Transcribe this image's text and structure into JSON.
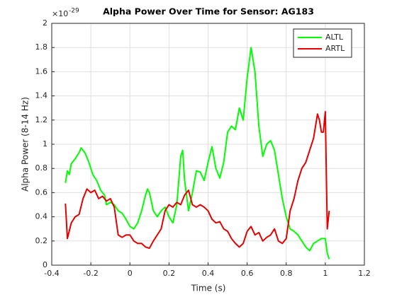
{
  "chart_data": {
    "type": "line",
    "title": "Alpha Power Over Time for Sensor: AG183",
    "x_label": "Time (s)",
    "y_label": "Alpha Power (8-14 Hz)",
    "y_multiplier": "×10",
    "y_multiplier_exponent": "-29",
    "xlim": [
      -0.4,
      1.2
    ],
    "xticks": [
      -0.4,
      -0.2,
      0,
      0.2,
      0.4,
      0.6,
      0.8,
      1,
      1.2
    ],
    "ylim": [
      0,
      2
    ],
    "yticks": [
      0,
      0.2,
      0.4,
      0.6,
      0.8,
      1,
      1.2,
      1.4,
      1.6,
      1.8,
      2
    ],
    "grid": true,
    "legend": "northeast",
    "series": [
      {
        "name": "ALTL",
        "color": "#00ff00",
        "x": [
          -0.33,
          -0.32,
          -0.31,
          -0.3,
          -0.28,
          -0.26,
          -0.25,
          -0.23,
          -0.21,
          -0.19,
          -0.17,
          -0.15,
          -0.13,
          -0.12,
          -0.1,
          -0.08,
          -0.06,
          -0.04,
          -0.02,
          0,
          0.02,
          0.04,
          0.06,
          0.08,
          0.09,
          0.1,
          0.12,
          0.14,
          0.16,
          0.18,
          0.2,
          0.22,
          0.24,
          0.26,
          0.27,
          0.28,
          0.3,
          0.32,
          0.34,
          0.36,
          0.38,
          0.4,
          0.42,
          0.44,
          0.46,
          0.48,
          0.5,
          0.52,
          0.54,
          0.56,
          0.58,
          0.6,
          0.62,
          0.64,
          0.66,
          0.68,
          0.7,
          0.72,
          0.74,
          0.76,
          0.78,
          0.8,
          0.82,
          0.84,
          0.86,
          0.88,
          0.9,
          0.92,
          0.94,
          0.96,
          0.98,
          1,
          1.01,
          1.02
        ],
        "values": [
          0.68,
          0.78,
          0.75,
          0.84,
          0.88,
          0.93,
          0.97,
          0.93,
          0.85,
          0.75,
          0.7,
          0.62,
          0.58,
          0.5,
          0.52,
          0.5,
          0.45,
          0.43,
          0.38,
          0.32,
          0.3,
          0.35,
          0.45,
          0.58,
          0.63,
          0.6,
          0.45,
          0.4,
          0.45,
          0.48,
          0.4,
          0.35,
          0.5,
          0.9,
          0.95,
          0.7,
          0.45,
          0.6,
          0.78,
          0.77,
          0.7,
          0.85,
          0.98,
          0.8,
          0.72,
          0.85,
          1.1,
          1.15,
          1.12,
          1.3,
          1.2,
          1.55,
          1.8,
          1.6,
          1.15,
          0.9,
          1,
          1.03,
          0.95,
          0.75,
          0.55,
          0.4,
          0.3,
          0.28,
          0.25,
          0.2,
          0.15,
          0.12,
          0.18,
          0.2,
          0.22,
          0.22,
          0.1,
          0.05
        ]
      },
      {
        "name": "ARTL",
        "color": "#e60000",
        "x": [
          -0.33,
          -0.32,
          -0.3,
          -0.28,
          -0.26,
          -0.24,
          -0.22,
          -0.2,
          -0.18,
          -0.16,
          -0.14,
          -0.12,
          -0.1,
          -0.08,
          -0.06,
          -0.04,
          -0.02,
          0,
          0.02,
          0.04,
          0.06,
          0.08,
          0.1,
          0.12,
          0.14,
          0.16,
          0.18,
          0.2,
          0.22,
          0.24,
          0.26,
          0.28,
          0.3,
          0.32,
          0.34,
          0.36,
          0.38,
          0.4,
          0.42,
          0.44,
          0.46,
          0.48,
          0.5,
          0.52,
          0.54,
          0.56,
          0.58,
          0.6,
          0.62,
          0.64,
          0.66,
          0.68,
          0.7,
          0.72,
          0.74,
          0.76,
          0.78,
          0.8,
          0.82,
          0.84,
          0.86,
          0.88,
          0.9,
          0.92,
          0.94,
          0.96,
          0.97,
          0.98,
          0.99,
          1,
          1.01,
          1.02
        ],
        "values": [
          0.51,
          0.22,
          0.35,
          0.4,
          0.42,
          0.55,
          0.63,
          0.6,
          0.62,
          0.55,
          0.57,
          0.53,
          0.55,
          0.48,
          0.25,
          0.23,
          0.25,
          0.25,
          0.2,
          0.18,
          0.18,
          0.15,
          0.14,
          0.2,
          0.25,
          0.3,
          0.45,
          0.5,
          0.48,
          0.52,
          0.5,
          0.58,
          0.62,
          0.5,
          0.48,
          0.5,
          0.48,
          0.45,
          0.38,
          0.35,
          0.36,
          0.3,
          0.28,
          0.22,
          0.18,
          0.15,
          0.18,
          0.28,
          0.32,
          0.25,
          0.27,
          0.2,
          0.23,
          0.25,
          0.3,
          0.2,
          0.18,
          0.22,
          0.45,
          0.55,
          0.7,
          0.8,
          0.85,
          0.95,
          1.05,
          1.25,
          1.2,
          1.1,
          1.1,
          1.27,
          0.3,
          0.45
        ]
      }
    ]
  }
}
